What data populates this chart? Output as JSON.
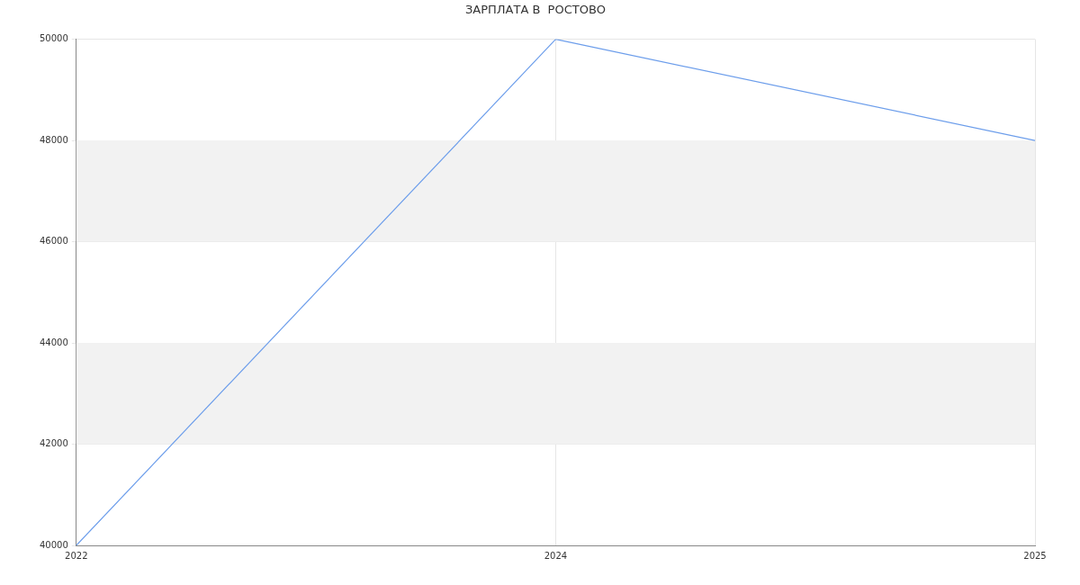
{
  "chart_data": {
    "type": "line",
    "title": "ЗАРПЛАТА В  РОСТОВО",
    "categories": [
      "2022",
      "2024",
      "2025"
    ],
    "series": [
      {
        "color": "#6d9eeb",
        "values": [
          40000,
          50000,
          48000
        ]
      }
    ],
    "ylim": [
      40000,
      50000
    ],
    "yticks": [
      40000,
      42000,
      44000,
      46000,
      48000,
      50000
    ],
    "grid": true,
    "legend": false,
    "marker": "none",
    "bands": [
      {
        "axis": "y",
        "from": 42000,
        "to": 44000,
        "color": "#f2f2f2"
      },
      {
        "axis": "y",
        "from": 46000,
        "to": 48000,
        "color": "#f2f2f2"
      }
    ]
  }
}
